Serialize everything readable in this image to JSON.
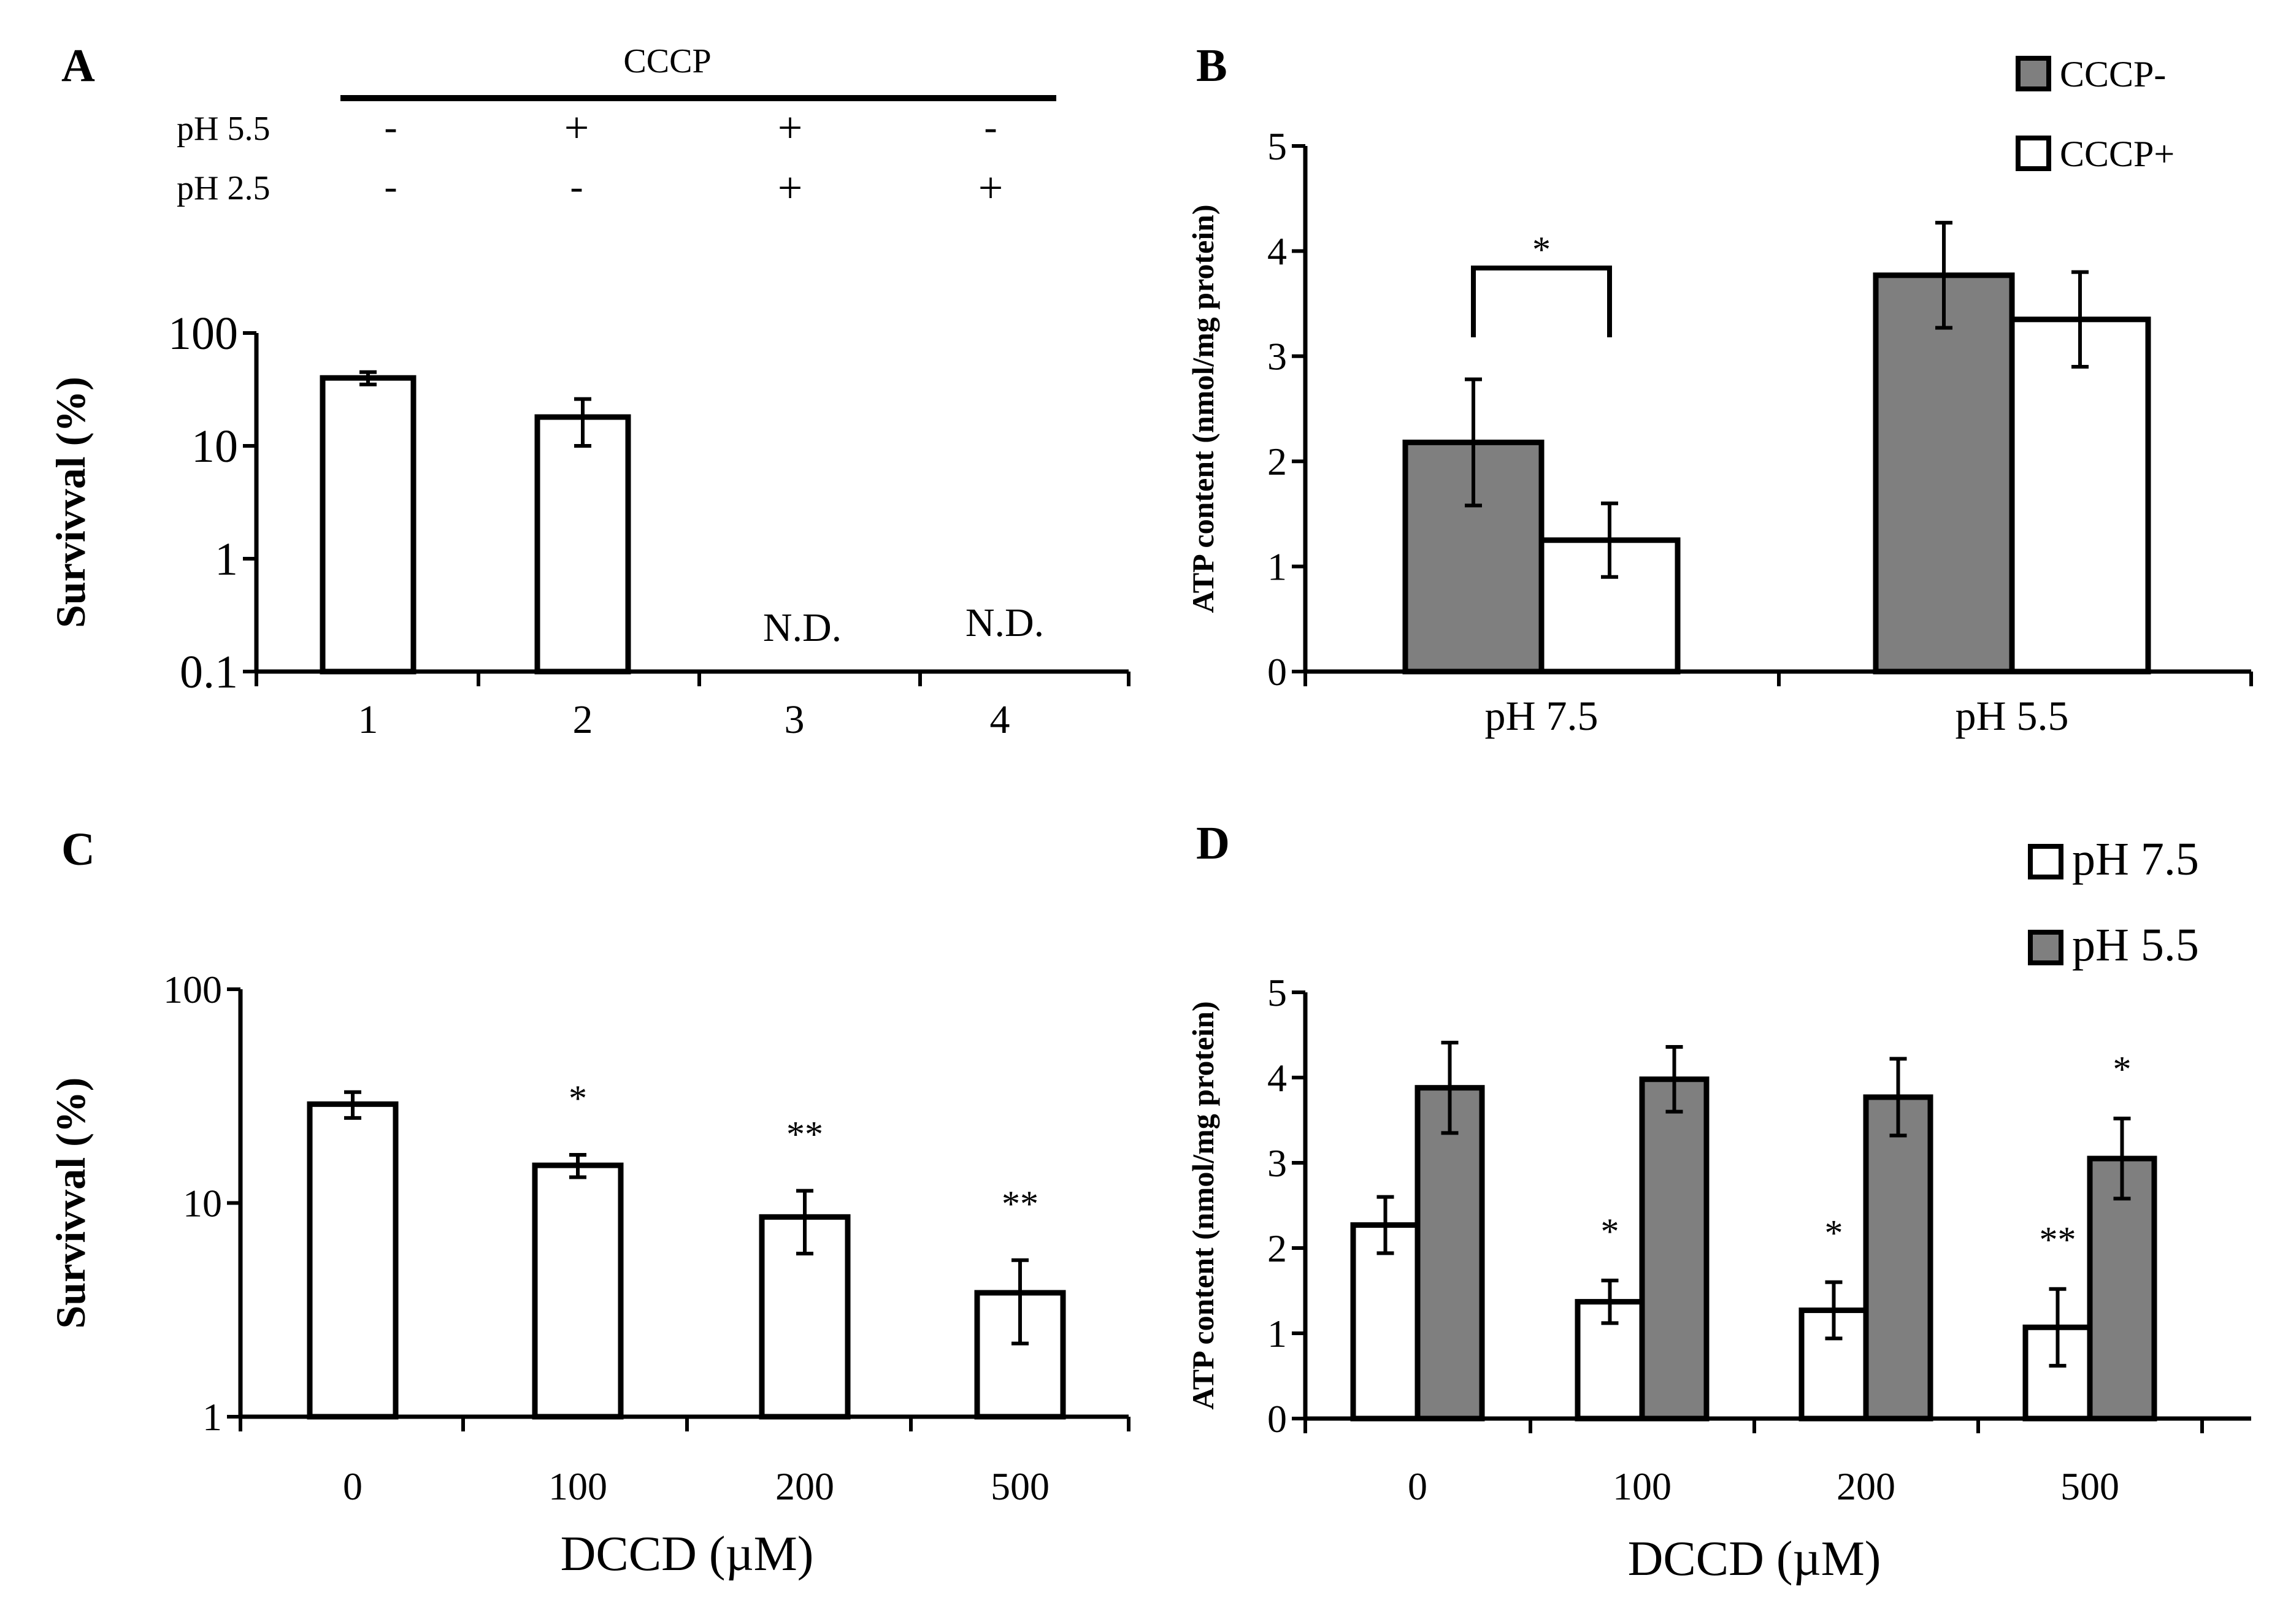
{
  "colors": {
    "filled": "#7f7f7f",
    "open": "#ffffff",
    "ink": "#000000"
  },
  "panels": {
    "A": {
      "letter": "A",
      "header": {
        "group_label": "CCCP",
        "rows": [
          {
            "label": "pH 5.5",
            "values": [
              "-",
              "+",
              "+",
              "-"
            ]
          },
          {
            "label": "pH 2.5",
            "values": [
              "-",
              "-",
              "+",
              "+"
            ]
          }
        ]
      }
    },
    "B": {
      "letter": "B"
    },
    "C": {
      "letter": "C"
    },
    "D": {
      "letter": "D"
    }
  },
  "chart_data": [
    {
      "panel": "A",
      "type": "bar",
      "yscale": "log",
      "ylabel": "Survivval (%)",
      "xlabel": "",
      "ylim": [
        0.1,
        100
      ],
      "yticks": [
        "0.1",
        "1",
        "10",
        "100"
      ],
      "categories": [
        "1",
        "2",
        "3",
        "4"
      ],
      "series": [
        {
          "name": "Survival",
          "fill": "open",
          "values": [
            40,
            18,
            null,
            null
          ],
          "errors": [
            5,
            8,
            null,
            null
          ]
        }
      ],
      "annotations": [
        {
          "category": 2,
          "text": "N.D."
        },
        {
          "category": 3,
          "text": "N.D."
        }
      ]
    },
    {
      "panel": "B",
      "type": "bar",
      "yscale": "linear",
      "ylabel": "ATP content (nmol/mg protein)",
      "xlabel": "",
      "ylim": [
        0,
        5
      ],
      "yticks": [
        "0",
        "1",
        "2",
        "3",
        "4",
        "5"
      ],
      "categories": [
        "pH 7.5",
        "pH 5.5"
      ],
      "series": [
        {
          "name": "CCCP-",
          "fill": "filled",
          "values": [
            2.18,
            3.77
          ],
          "errors": [
            0.6,
            0.5
          ]
        },
        {
          "name": "CCCP+",
          "fill": "open",
          "values": [
            1.25,
            3.35
          ],
          "errors": [
            0.35,
            0.45
          ]
        }
      ],
      "legend": {
        "position": "top-right",
        "entries": [
          "CCCP-",
          "CCCP+"
        ]
      },
      "significance": [
        {
          "category": 0,
          "text": "*"
        }
      ]
    },
    {
      "panel": "C",
      "type": "bar",
      "yscale": "log",
      "ylabel": "Survivval (%)",
      "xlabel": "DCCD (µM)",
      "ylim": [
        1,
        100
      ],
      "yticks": [
        "1",
        "10",
        "100"
      ],
      "categories": [
        "0",
        "100",
        "200",
        "500"
      ],
      "series": [
        {
          "name": "Survival",
          "fill": "open",
          "values": [
            29,
            15,
            8.6,
            3.8
          ],
          "errors": [
            4,
            1.8,
            2.8,
            1.6
          ]
        }
      ],
      "stars": [
        "",
        "*",
        "**",
        "**"
      ]
    },
    {
      "panel": "D",
      "type": "bar",
      "yscale": "linear",
      "ylabel": "ATP content (nmol/mg protein)",
      "xlabel": "DCCD (µM)",
      "ylim": [
        0,
        5
      ],
      "yticks": [
        "0",
        "1",
        "2",
        "3",
        "4",
        "5"
      ],
      "categories": [
        "0",
        "100",
        "200",
        "500"
      ],
      "series": [
        {
          "name": "pH 7.5",
          "fill": "open",
          "values": [
            2.27,
            1.37,
            1.27,
            1.07
          ],
          "errors": [
            0.33,
            0.25,
            0.33,
            0.45
          ],
          "stars": [
            "",
            "*",
            "*",
            "**"
          ]
        },
        {
          "name": "pH 5.5",
          "fill": "filled",
          "values": [
            3.88,
            3.98,
            3.77,
            3.05
          ],
          "errors": [
            0.53,
            0.38,
            0.45,
            0.47
          ],
          "stars": [
            "",
            "",
            "",
            "*"
          ]
        }
      ],
      "legend": {
        "position": "top-right",
        "entries": [
          "pH 7.5",
          "pH 5.5"
        ]
      }
    }
  ]
}
